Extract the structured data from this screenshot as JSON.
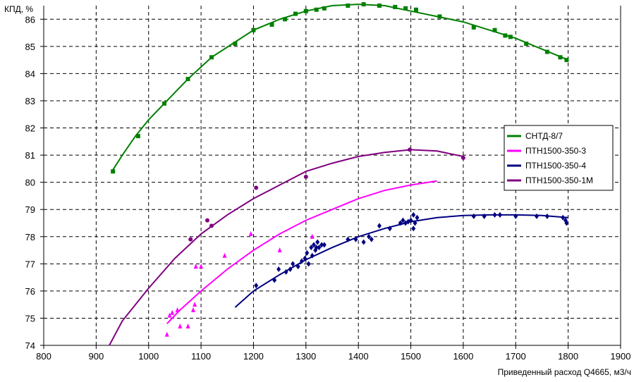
{
  "chart_data": {
    "type": "scatter",
    "title": "",
    "ylabel": "КПД, %",
    "xlabel": "Приведенный расход Q4665, м3/ч",
    "xlim": [
      800,
      1900
    ],
    "ylim": [
      74,
      86.5
    ],
    "xticks": [
      800,
      900,
      1000,
      1100,
      1200,
      1300,
      1400,
      1500,
      1600,
      1700,
      1800,
      1900
    ],
    "yticks": [
      74,
      75,
      76,
      77,
      78,
      79,
      80,
      81,
      82,
      83,
      84,
      85,
      86
    ],
    "grid": true,
    "legend_position": "right",
    "series": [
      {
        "name": "СНТД-8/7",
        "color": "#008000",
        "marker": "square",
        "curve": [
          [
            930,
            80.4
          ],
          [
            950,
            81.0
          ],
          [
            975,
            81.7
          ],
          [
            1000,
            82.3
          ],
          [
            1030,
            82.9
          ],
          [
            1075,
            83.8
          ],
          [
            1120,
            84.6
          ],
          [
            1160,
            85.1
          ],
          [
            1200,
            85.6
          ],
          [
            1250,
            86.0
          ],
          [
            1300,
            86.3
          ],
          [
            1350,
            86.5
          ],
          [
            1400,
            86.55
          ],
          [
            1450,
            86.5
          ],
          [
            1500,
            86.3
          ],
          [
            1550,
            86.1
          ],
          [
            1600,
            85.9
          ],
          [
            1650,
            85.6
          ],
          [
            1700,
            85.3
          ],
          [
            1750,
            84.9
          ],
          [
            1800,
            84.5
          ]
        ],
        "points": [
          [
            932,
            80.4
          ],
          [
            980,
            81.7
          ],
          [
            1030,
            82.9
          ],
          [
            1075,
            83.8
          ],
          [
            1120,
            84.6
          ],
          [
            1165,
            85.1
          ],
          [
            1200,
            85.6
          ],
          [
            1235,
            85.8
          ],
          [
            1260,
            86.0
          ],
          [
            1280,
            86.2
          ],
          [
            1300,
            86.3
          ],
          [
            1320,
            86.35
          ],
          [
            1335,
            86.4
          ],
          [
            1380,
            86.5
          ],
          [
            1410,
            86.55
          ],
          [
            1440,
            86.5
          ],
          [
            1470,
            86.45
          ],
          [
            1490,
            86.4
          ],
          [
            1510,
            86.35
          ],
          [
            1555,
            86.1
          ],
          [
            1620,
            85.7
          ],
          [
            1660,
            85.6
          ],
          [
            1680,
            85.4
          ],
          [
            1690,
            85.35
          ],
          [
            1720,
            85.1
          ],
          [
            1760,
            84.8
          ],
          [
            1785,
            84.6
          ],
          [
            1797,
            84.5
          ]
        ]
      },
      {
        "name": "ПТН1500-350-3",
        "color": "#ff00ff",
        "marker": "triangle",
        "curve": [
          [
            1035,
            74.8
          ],
          [
            1060,
            75.3
          ],
          [
            1100,
            76.0
          ],
          [
            1150,
            76.8
          ],
          [
            1200,
            77.5
          ],
          [
            1250,
            78.1
          ],
          [
            1300,
            78.6
          ],
          [
            1350,
            79.0
          ],
          [
            1400,
            79.4
          ],
          [
            1450,
            79.7
          ],
          [
            1500,
            79.9
          ],
          [
            1550,
            80.05
          ]
        ],
        "points": [
          [
            1035,
            74.4
          ],
          [
            1040,
            75.1
          ],
          [
            1045,
            75.2
          ],
          [
            1055,
            75.3
          ],
          [
            1060,
            74.7
          ],
          [
            1075,
            74.7
          ],
          [
            1085,
            75.3
          ],
          [
            1088,
            75.5
          ],
          [
            1090,
            76.9
          ],
          [
            1100,
            76.9
          ],
          [
            1145,
            77.3
          ],
          [
            1195,
            78.1
          ],
          [
            1250,
            77.5
          ],
          [
            1312,
            78.0
          ]
        ]
      },
      {
        "name": "ПТН1500-350-4",
        "color": "#000080",
        "marker": "diamond",
        "curve": [
          [
            1165,
            75.4
          ],
          [
            1200,
            76.0
          ],
          [
            1250,
            76.6
          ],
          [
            1300,
            77.15
          ],
          [
            1350,
            77.6
          ],
          [
            1400,
            78.0
          ],
          [
            1450,
            78.3
          ],
          [
            1500,
            78.55
          ],
          [
            1550,
            78.7
          ],
          [
            1600,
            78.78
          ],
          [
            1650,
            78.8
          ],
          [
            1700,
            78.8
          ],
          [
            1750,
            78.78
          ],
          [
            1800,
            78.7
          ]
        ],
        "points": [
          [
            1205,
            76.2
          ],
          [
            1240,
            76.4
          ],
          [
            1248,
            76.8
          ],
          [
            1262,
            76.7
          ],
          [
            1270,
            76.8
          ],
          [
            1275,
            77.0
          ],
          [
            1285,
            76.9
          ],
          [
            1292,
            77.1
          ],
          [
            1298,
            77.2
          ],
          [
            1302,
            77.4
          ],
          [
            1305,
            77.0
          ],
          [
            1310,
            77.6
          ],
          [
            1312,
            77.3
          ],
          [
            1315,
            77.7
          ],
          [
            1318,
            77.5
          ],
          [
            1320,
            77.6
          ],
          [
            1322,
            77.8
          ],
          [
            1325,
            77.6
          ],
          [
            1330,
            77.7
          ],
          [
            1335,
            77.7
          ],
          [
            1380,
            77.9
          ],
          [
            1395,
            77.9
          ],
          [
            1410,
            77.8
          ],
          [
            1420,
            78.0
          ],
          [
            1425,
            77.9
          ],
          [
            1440,
            78.4
          ],
          [
            1460,
            78.3
          ],
          [
            1480,
            78.5
          ],
          [
            1485,
            78.6
          ],
          [
            1490,
            78.5
          ],
          [
            1495,
            78.55
          ],
          [
            1500,
            78.6
          ],
          [
            1505,
            78.3
          ],
          [
            1505,
            78.8
          ],
          [
            1508,
            78.5
          ],
          [
            1512,
            78.7
          ],
          [
            1620,
            78.75
          ],
          [
            1640,
            78.75
          ],
          [
            1660,
            78.8
          ],
          [
            1670,
            78.8
          ],
          [
            1700,
            78.75
          ],
          [
            1740,
            78.75
          ],
          [
            1760,
            78.75
          ],
          [
            1790,
            78.7
          ],
          [
            1795,
            78.6
          ],
          [
            1797,
            78.5
          ]
        ]
      },
      {
        "name": "ПТН1500-350-1М",
        "color": "#800080",
        "marker": "circle",
        "curve": [
          [
            925,
            74.0
          ],
          [
            950,
            74.9
          ],
          [
            1000,
            76.1
          ],
          [
            1050,
            77.2
          ],
          [
            1100,
            78.1
          ],
          [
            1150,
            78.8
          ],
          [
            1200,
            79.4
          ],
          [
            1250,
            79.9
          ],
          [
            1300,
            80.4
          ],
          [
            1350,
            80.7
          ],
          [
            1400,
            80.95
          ],
          [
            1450,
            81.1
          ],
          [
            1500,
            81.2
          ],
          [
            1550,
            81.15
          ],
          [
            1600,
            80.95
          ]
        ],
        "points": [
          [
            1080,
            77.9
          ],
          [
            1112,
            78.6
          ],
          [
            1120,
            78.4
          ],
          [
            1205,
            79.8
          ],
          [
            1300,
            80.2
          ],
          [
            1498,
            81.2
          ],
          [
            1600,
            80.9
          ]
        ]
      }
    ]
  }
}
